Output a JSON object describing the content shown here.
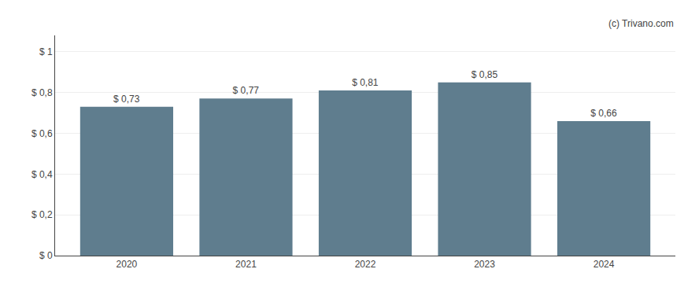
{
  "chart_data": {
    "type": "bar",
    "categories": [
      "2020",
      "2021",
      "2022",
      "2023",
      "2024"
    ],
    "values": [
      0.73,
      0.77,
      0.81,
      0.85,
      0.66
    ],
    "value_labels": [
      "$ 0,73",
      "$ 0,77",
      "$ 0,81",
      "$ 0,85",
      "$ 0,66"
    ],
    "color": "#5f7d8e",
    "ylim": [
      0,
      1.08
    ],
    "yticks": [
      {
        "value": 0,
        "label": "$ 0"
      },
      {
        "value": 0.2,
        "label": "$ 0,2"
      },
      {
        "value": 0.4,
        "label": "$ 0,4"
      },
      {
        "value": 0.6,
        "label": "$ 0,6"
      },
      {
        "value": 0.8,
        "label": "$ 0,8"
      },
      {
        "value": 1.0,
        "label": "$ 1"
      }
    ],
    "grid": true,
    "data_labels": true,
    "annotations": [
      "(c) Trivano.com"
    ]
  }
}
